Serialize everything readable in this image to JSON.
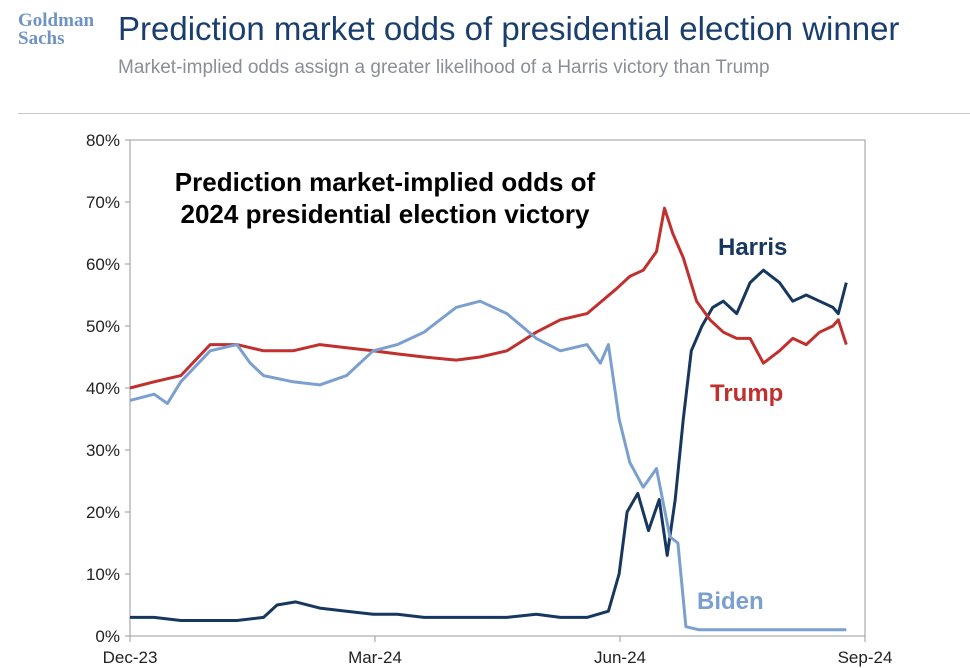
{
  "header": {
    "logo_line1": "Goldman",
    "logo_line2": "Sachs",
    "title": "Prediction market odds of presidential election winner",
    "subtitle": "Market-implied odds assign a greater likelihood of a Harris victory than Trump"
  },
  "chart_data": {
    "type": "line",
    "title_lines": [
      "Prediction market-implied odds of",
      "2024 presidential election victory"
    ],
    "xlabel": "",
    "ylabel": "",
    "x_ticks": [
      "Dec-23",
      "Mar-24",
      "Jun-24",
      "Sep-24"
    ],
    "x_range": [
      "2023-12-01",
      "2024-09-01"
    ],
    "y_ticks": [
      "0%",
      "10%",
      "20%",
      "30%",
      "40%",
      "50%",
      "60%",
      "70%",
      "80%"
    ],
    "ylim": [
      0,
      80
    ],
    "grid": false,
    "legend": "direct labels",
    "series": [
      {
        "name": "Harris",
        "color": "#17375e",
        "points": [
          [
            "2023-12-01",
            3
          ],
          [
            "2023-12-10",
            3
          ],
          [
            "2023-12-20",
            2.5
          ],
          [
            "2023-12-31",
            2.5
          ],
          [
            "2024-01-10",
            2.5
          ],
          [
            "2024-01-20",
            3
          ],
          [
            "2024-01-25",
            5
          ],
          [
            "2024-02-01",
            5.5
          ],
          [
            "2024-02-10",
            4.5
          ],
          [
            "2024-02-20",
            4
          ],
          [
            "2024-03-01",
            3.5
          ],
          [
            "2024-03-10",
            3.5
          ],
          [
            "2024-03-20",
            3
          ],
          [
            "2024-04-01",
            3
          ],
          [
            "2024-04-10",
            3
          ],
          [
            "2024-04-20",
            3
          ],
          [
            "2024-05-01",
            3.5
          ],
          [
            "2024-05-10",
            3
          ],
          [
            "2024-05-20",
            3
          ],
          [
            "2024-05-28",
            4
          ],
          [
            "2024-06-01",
            10
          ],
          [
            "2024-06-04",
            20
          ],
          [
            "2024-06-08",
            23
          ],
          [
            "2024-06-12",
            17
          ],
          [
            "2024-06-16",
            22
          ],
          [
            "2024-06-19",
            13
          ],
          [
            "2024-06-22",
            22
          ],
          [
            "2024-06-25",
            35
          ],
          [
            "2024-06-28",
            46
          ],
          [
            "2024-07-02",
            50
          ],
          [
            "2024-07-06",
            53
          ],
          [
            "2024-07-10",
            54
          ],
          [
            "2024-07-15",
            52
          ],
          [
            "2024-07-20",
            57
          ],
          [
            "2024-07-25",
            59
          ],
          [
            "2024-07-31",
            57
          ],
          [
            "2024-08-05",
            54
          ],
          [
            "2024-08-10",
            55
          ],
          [
            "2024-08-15",
            54
          ],
          [
            "2024-08-20",
            53
          ],
          [
            "2024-08-22",
            52
          ],
          [
            "2024-08-25",
            57
          ]
        ]
      },
      {
        "name": "Trump",
        "color": "#c0302e",
        "points": [
          [
            "2023-12-01",
            40
          ],
          [
            "2023-12-10",
            41
          ],
          [
            "2023-12-20",
            42
          ],
          [
            "2023-12-31",
            47
          ],
          [
            "2024-01-10",
            47
          ],
          [
            "2024-01-20",
            46
          ],
          [
            "2024-01-31",
            46
          ],
          [
            "2024-02-10",
            47
          ],
          [
            "2024-02-20",
            46.5
          ],
          [
            "2024-03-01",
            46
          ],
          [
            "2024-03-10",
            45.5
          ],
          [
            "2024-03-20",
            45
          ],
          [
            "2024-04-01",
            44.5
          ],
          [
            "2024-04-10",
            45
          ],
          [
            "2024-04-20",
            46
          ],
          [
            "2024-05-01",
            49
          ],
          [
            "2024-05-10",
            51
          ],
          [
            "2024-05-20",
            52
          ],
          [
            "2024-05-31",
            56
          ],
          [
            "2024-06-05",
            58
          ],
          [
            "2024-06-10",
            59
          ],
          [
            "2024-06-15",
            62
          ],
          [
            "2024-06-18",
            69
          ],
          [
            "2024-06-21",
            65
          ],
          [
            "2024-06-25",
            61
          ],
          [
            "2024-06-30",
            54
          ],
          [
            "2024-07-05",
            51
          ],
          [
            "2024-07-10",
            49
          ],
          [
            "2024-07-15",
            48
          ],
          [
            "2024-07-20",
            48
          ],
          [
            "2024-07-25",
            44
          ],
          [
            "2024-07-31",
            46
          ],
          [
            "2024-08-05",
            48
          ],
          [
            "2024-08-10",
            47
          ],
          [
            "2024-08-15",
            49
          ],
          [
            "2024-08-20",
            50
          ],
          [
            "2024-08-22",
            51
          ],
          [
            "2024-08-25",
            47
          ]
        ]
      },
      {
        "name": "Biden",
        "color": "#7b9fcf",
        "points": [
          [
            "2023-12-01",
            38
          ],
          [
            "2023-12-10",
            39
          ],
          [
            "2023-12-15",
            37.5
          ],
          [
            "2023-12-20",
            41
          ],
          [
            "2023-12-31",
            46
          ],
          [
            "2024-01-10",
            47
          ],
          [
            "2024-01-15",
            44
          ],
          [
            "2024-01-20",
            42
          ],
          [
            "2024-01-31",
            41
          ],
          [
            "2024-02-10",
            40.5
          ],
          [
            "2024-02-20",
            42
          ],
          [
            "2024-03-01",
            46
          ],
          [
            "2024-03-10",
            47
          ],
          [
            "2024-03-20",
            49
          ],
          [
            "2024-04-01",
            53
          ],
          [
            "2024-04-10",
            54
          ],
          [
            "2024-04-20",
            52
          ],
          [
            "2024-05-01",
            48
          ],
          [
            "2024-05-10",
            46
          ],
          [
            "2024-05-20",
            47
          ],
          [
            "2024-05-25",
            44
          ],
          [
            "2024-05-28",
            47
          ],
          [
            "2024-06-01",
            35
          ],
          [
            "2024-06-05",
            28
          ],
          [
            "2024-06-10",
            24
          ],
          [
            "2024-06-15",
            27
          ],
          [
            "2024-06-20",
            16
          ],
          [
            "2024-06-23",
            15
          ],
          [
            "2024-06-26",
            1.5
          ],
          [
            "2024-07-01",
            1
          ],
          [
            "2024-07-15",
            1
          ],
          [
            "2024-08-01",
            1
          ],
          [
            "2024-08-25",
            1
          ]
        ]
      }
    ]
  }
}
